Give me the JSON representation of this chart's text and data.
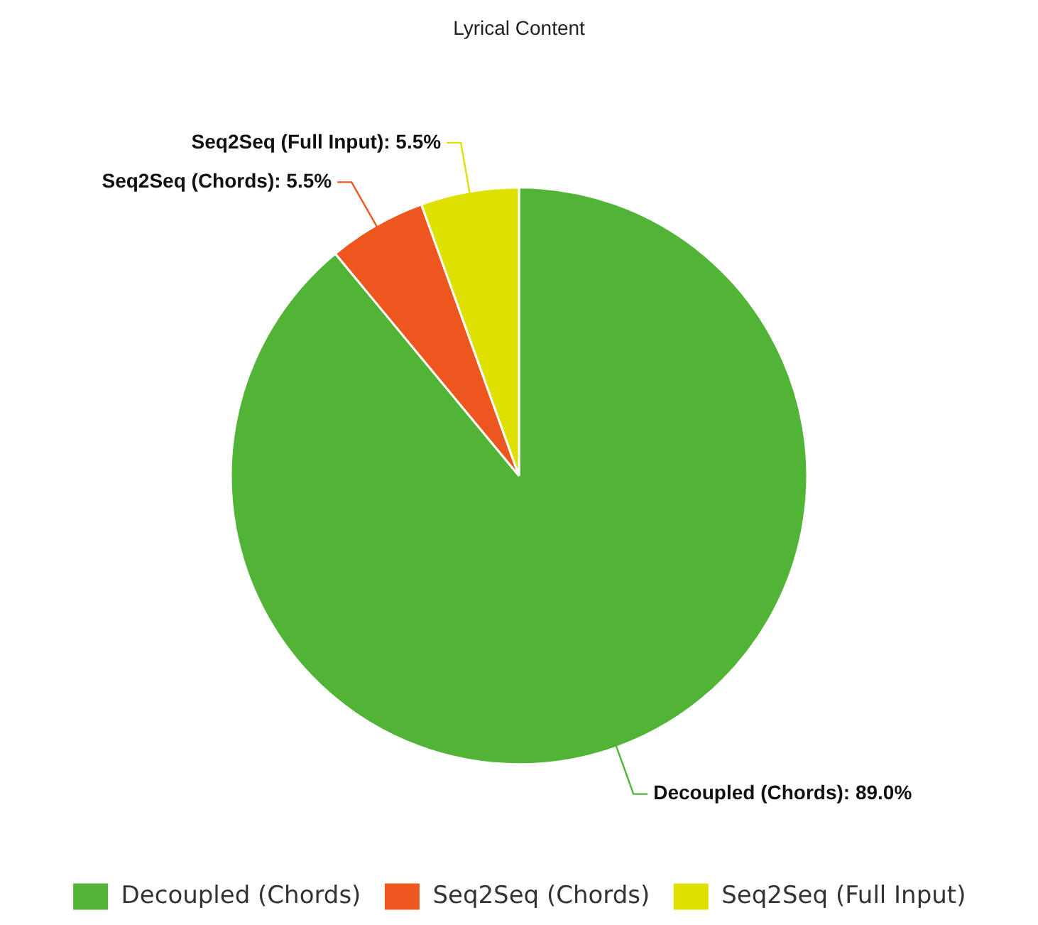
{
  "chart_data": {
    "type": "pie",
    "title": "Lyrical Content",
    "categories": [
      "Decoupled (Chords)",
      "Seq2Seq (Chords)",
      "Seq2Seq (Full Input)"
    ],
    "values": [
      89.0,
      5.5,
      5.5
    ],
    "colors": [
      "#52b436",
      "#ee561f",
      "#dde000"
    ],
    "value_labels": [
      "Decoupled (Chords): 89.0%",
      "Seq2Seq (Chords): 5.5%",
      "Seq2Seq (Full Input): 5.5%"
    ],
    "legend": "bottom"
  }
}
